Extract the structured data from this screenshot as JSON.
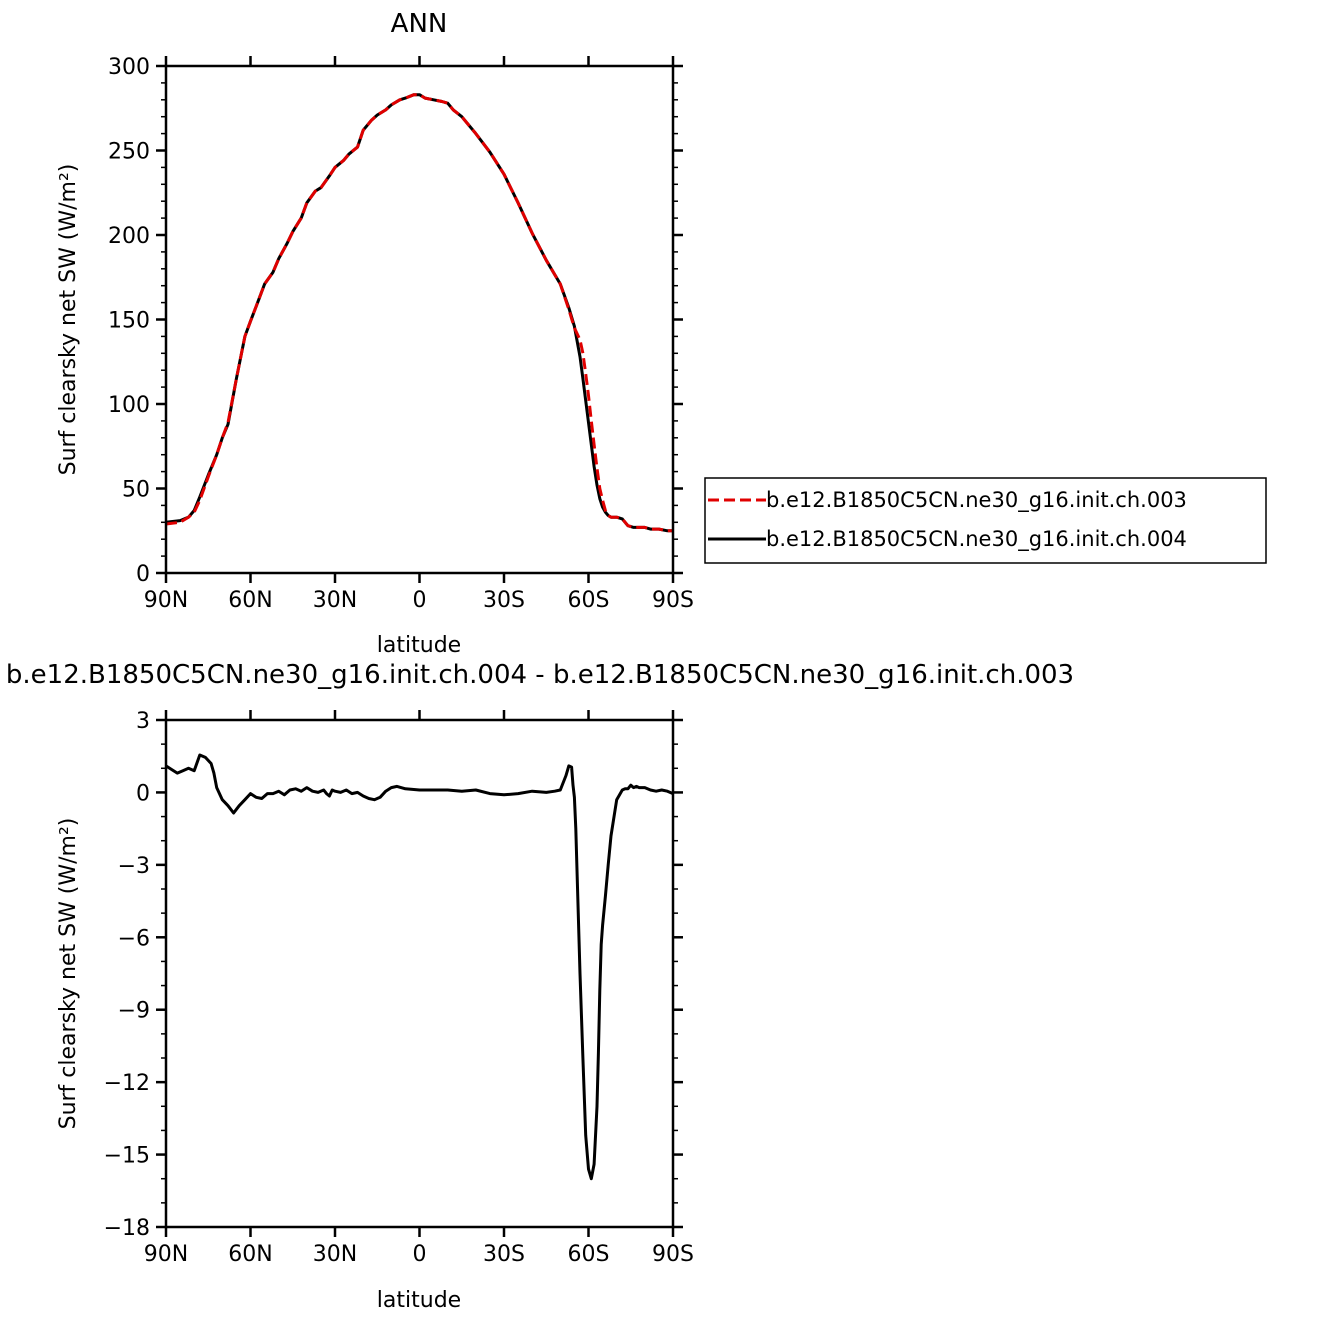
{
  "chart_data": [
    {
      "type": "line",
      "title": "ANN",
      "xlabel": "latitude",
      "ylabel": "Surf clearsky net SW (W/m²)",
      "xlim": [
        90,
        -90
      ],
      "ylim": [
        0,
        300
      ],
      "x_ticks": [
        {
          "value": 90,
          "label": "90N"
        },
        {
          "value": 60,
          "label": "60N"
        },
        {
          "value": 30,
          "label": "30N"
        },
        {
          "value": 0,
          "label": "0"
        },
        {
          "value": -30,
          "label": "30S"
        },
        {
          "value": -60,
          "label": "60S"
        },
        {
          "value": -90,
          "label": "90S"
        }
      ],
      "y_ticks": [
        {
          "value": 0,
          "label": "0"
        },
        {
          "value": 50,
          "label": "50"
        },
        {
          "value": 100,
          "label": "100"
        },
        {
          "value": 150,
          "label": "150"
        },
        {
          "value": 200,
          "label": "200"
        },
        {
          "value": 250,
          "label": "250"
        },
        {
          "value": 300,
          "label": "300"
        }
      ],
      "legend": "right",
      "series": [
        {
          "name": "b.e12.B1850C5CN.ne30_g16.init.ch.003",
          "color": "#e00000",
          "dash": "dashed",
          "x": [
            90,
            85,
            82,
            80,
            78,
            75,
            72,
            70,
            68,
            65,
            62,
            60,
            57,
            55,
            52,
            50,
            47,
            45,
            42,
            40,
            37,
            35,
            32,
            30,
            27,
            25,
            22,
            20,
            17,
            15,
            12,
            10,
            7,
            5,
            2,
            0,
            -2,
            -5,
            -8,
            -10,
            -12,
            -15,
            -20,
            -25,
            -30,
            -35,
            -40,
            -45,
            -50,
            -53,
            -55,
            -57,
            -58,
            -59,
            -60,
            -61,
            -62,
            -63,
            -64,
            -65,
            -66,
            -67,
            -68,
            -70,
            -72,
            -74,
            -76,
            -78,
            -80,
            -82,
            -85,
            -88,
            -90
          ],
          "y": [
            29,
            30,
            33,
            36,
            43,
            57,
            70,
            80,
            89,
            115,
            140,
            149,
            162,
            171,
            178,
            186,
            195,
            202,
            210,
            219,
            226,
            228,
            235,
            240,
            244,
            248,
            252,
            262,
            268,
            271,
            274,
            277,
            280,
            281,
            283,
            283,
            281,
            280,
            279,
            278,
            274,
            270,
            260,
            249,
            236,
            219,
            201,
            185,
            171,
            156,
            145,
            138,
            130,
            118,
            105,
            90,
            76,
            62,
            50,
            43,
            37,
            34,
            33,
            33,
            32,
            28,
            27,
            27,
            27,
            26,
            26,
            25,
            25
          ]
        },
        {
          "name": "b.e12.B1850C5CN.ne30_g16.init.ch.004",
          "color": "#000000",
          "dash": "solid",
          "x": [
            90,
            85,
            82,
            80,
            78,
            75,
            72,
            70,
            68,
            65,
            62,
            60,
            57,
            55,
            52,
            50,
            47,
            45,
            42,
            40,
            37,
            35,
            32,
            30,
            27,
            25,
            22,
            20,
            17,
            15,
            12,
            10,
            7,
            5,
            2,
            0,
            -2,
            -5,
            -8,
            -10,
            -12,
            -15,
            -20,
            -25,
            -30,
            -35,
            -40,
            -45,
            -50,
            -53,
            -55,
            -57,
            -58,
            -59,
            -60,
            -61,
            -62,
            -63,
            -64,
            -65,
            -66,
            -67,
            -68,
            -70,
            -72,
            -74,
            -76,
            -78,
            -80,
            -82,
            -85,
            -88,
            -90
          ],
          "y": [
            30,
            31,
            33,
            37,
            45,
            58,
            70,
            80,
            88,
            115,
            140,
            149,
            162,
            171,
            178,
            186,
            195,
            202,
            210,
            219,
            226,
            228,
            235,
            240,
            244,
            248,
            252,
            262,
            268,
            271,
            274,
            277,
            280,
            281,
            283,
            283,
            281,
            280,
            279,
            278,
            274,
            270,
            260,
            249,
            236,
            219,
            201,
            185,
            171,
            157,
            146,
            128,
            115,
            102,
            89,
            76,
            63,
            52,
            44,
            39,
            36,
            34,
            33,
            33,
            32,
            28,
            27,
            27,
            27,
            26,
            26,
            25,
            25
          ]
        }
      ]
    },
    {
      "type": "line",
      "title": "b.e12.B1850C5CN.ne30_g16.init.ch.004 - b.e12.B1850C5CN.ne30_g16.init.ch.003",
      "xlabel": "latitude",
      "ylabel": "Surf clearsky net SW (W/m²)",
      "xlim": [
        90,
        -90
      ],
      "ylim": [
        -18,
        3
      ],
      "x_ticks": [
        {
          "value": 90,
          "label": "90N"
        },
        {
          "value": 60,
          "label": "60N"
        },
        {
          "value": 30,
          "label": "30N"
        },
        {
          "value": 0,
          "label": "0"
        },
        {
          "value": -30,
          "label": "30S"
        },
        {
          "value": -60,
          "label": "60S"
        },
        {
          "value": -90,
          "label": "90S"
        }
      ],
      "y_ticks": [
        {
          "value": 3,
          "label": "3"
        },
        {
          "value": 0,
          "label": "0"
        },
        {
          "value": -3,
          "label": "−3"
        },
        {
          "value": -6,
          "label": "−6"
        },
        {
          "value": -9,
          "label": "−9"
        },
        {
          "value": -12,
          "label": "−12"
        },
        {
          "value": -15,
          "label": "−15"
        },
        {
          "value": -18,
          "label": "−18"
        }
      ],
      "series": [
        {
          "color": "#000000",
          "dash": "solid",
          "x": [
            90,
            88,
            86,
            84,
            82,
            80,
            78,
            76,
            74,
            73,
            72,
            70,
            68,
            66,
            65,
            64,
            62,
            60,
            58,
            56,
            54,
            52,
            50,
            48,
            46,
            44,
            42,
            40,
            38,
            36,
            34,
            33,
            32,
            31,
            30,
            28,
            26,
            24,
            22,
            20,
            18,
            16,
            14,
            12,
            10,
            8,
            5,
            0,
            -5,
            -10,
            -15,
            -20,
            -25,
            -30,
            -35,
            -40,
            -45,
            -48,
            -50,
            -52,
            -53,
            -54,
            -54.5,
            -55,
            -55.5,
            -56,
            -57,
            -58,
            -59,
            -60,
            -61,
            -62,
            -63,
            -63.5,
            -64,
            -64.5,
            -65,
            -66,
            -67,
            -68,
            -70,
            -72,
            -73,
            -74,
            -75,
            -76,
            -77,
            -78,
            -80,
            -82,
            -84,
            -86,
            -88,
            -90
          ],
          "y": [
            1.1,
            0.95,
            0.8,
            0.9,
            1.0,
            0.9,
            1.55,
            1.45,
            1.2,
            0.8,
            0.2,
            -0.3,
            -0.55,
            -0.85,
            -0.7,
            -0.55,
            -0.3,
            -0.05,
            -0.2,
            -0.25,
            -0.05,
            -0.05,
            0.05,
            -0.1,
            0.1,
            0.15,
            0.05,
            0.2,
            0.05,
            0.0,
            0.1,
            -0.05,
            -0.15,
            0.1,
            0.05,
            0.0,
            0.1,
            -0.05,
            0.0,
            -0.15,
            -0.25,
            -0.3,
            -0.2,
            0.05,
            0.2,
            0.25,
            0.15,
            0.1,
            0.1,
            0.1,
            0.05,
            0.1,
            -0.05,
            -0.1,
            -0.05,
            0.05,
            0.0,
            0.05,
            0.1,
            0.7,
            1.1,
            1.05,
            0.3,
            -0.2,
            -1.5,
            -3.5,
            -7.5,
            -11.0,
            -14.2,
            -15.6,
            -16.0,
            -15.4,
            -13.0,
            -10.8,
            -8.2,
            -6.3,
            -5.5,
            -4.3,
            -3.0,
            -1.8,
            -0.3,
            0.1,
            0.15,
            0.15,
            0.3,
            0.2,
            0.25,
            0.2,
            0.2,
            0.1,
            0.05,
            0.1,
            0.05,
            -0.05
          ]
        }
      ]
    }
  ]
}
